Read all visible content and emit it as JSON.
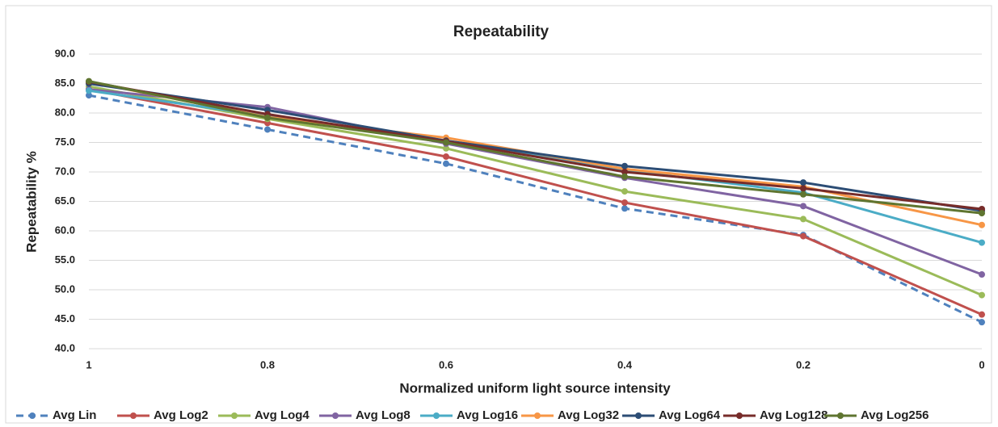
{
  "chart_data": {
    "type": "line",
    "title": "Repeatability",
    "x_label": "Normalized uniform light  source intensity",
    "y_label": "Repeatability %",
    "categories": [
      "1",
      "0.8",
      "0.6",
      "0.4",
      "0.2",
      "0"
    ],
    "ylim": [
      40,
      90
    ],
    "yticks": [
      {
        "value": 40,
        "label": "40.0"
      },
      {
        "value": 45,
        "label": "45.0"
      },
      {
        "value": 50,
        "label": "50.0"
      },
      {
        "value": 55,
        "label": "55.0"
      },
      {
        "value": 60,
        "label": "60.0"
      },
      {
        "value": 65,
        "label": "65.0"
      },
      {
        "value": 70,
        "label": "70.0"
      },
      {
        "value": 75,
        "label": "75.0"
      },
      {
        "value": 80,
        "label": "80.0"
      },
      {
        "value": 85,
        "label": "85.0"
      },
      {
        "value": 90,
        "label": "90.0"
      }
    ],
    "grid": true,
    "legend": "bottom",
    "series": [
      {
        "name": "Avg Lin",
        "color": "#4f81bd",
        "dashed": true,
        "values": [
          83.0,
          77.2,
          71.4,
          63.8,
          59.3,
          44.5
        ]
      },
      {
        "name": "Avg Log2",
        "color": "#c0504d",
        "values": [
          84.0,
          78.3,
          72.6,
          64.8,
          59.1,
          45.8
        ]
      },
      {
        "name": "Avg Log4",
        "color": "#9bbb59",
        "values": [
          84.5,
          79.0,
          74.0,
          66.7,
          62.0,
          49.1
        ]
      },
      {
        "name": "Avg Log8",
        "color": "#8064a2",
        "values": [
          84.0,
          81.0,
          74.8,
          69.0,
          64.2,
          52.6
        ]
      },
      {
        "name": "Avg Log16",
        "color": "#4bacc6",
        "values": [
          83.8,
          79.5,
          75.3,
          70.3,
          66.5,
          58.0
        ]
      },
      {
        "name": "Avg Log32",
        "color": "#f79646",
        "values": [
          85.3,
          79.3,
          75.8,
          70.5,
          67.5,
          61.0
        ]
      },
      {
        "name": "Avg Log64",
        "color": "#2c4d75",
        "values": [
          85.0,
          80.5,
          75.3,
          71.0,
          68.2,
          63.4
        ]
      },
      {
        "name": "Avg Log128",
        "color": "#772c2a",
        "values": [
          85.3,
          79.8,
          75.2,
          70.0,
          67.2,
          63.7
        ]
      },
      {
        "name": "Avg Log256",
        "color": "#5f7530",
        "values": [
          85.4,
          79.2,
          75.0,
          69.2,
          66.2,
          63.0
        ]
      }
    ]
  }
}
